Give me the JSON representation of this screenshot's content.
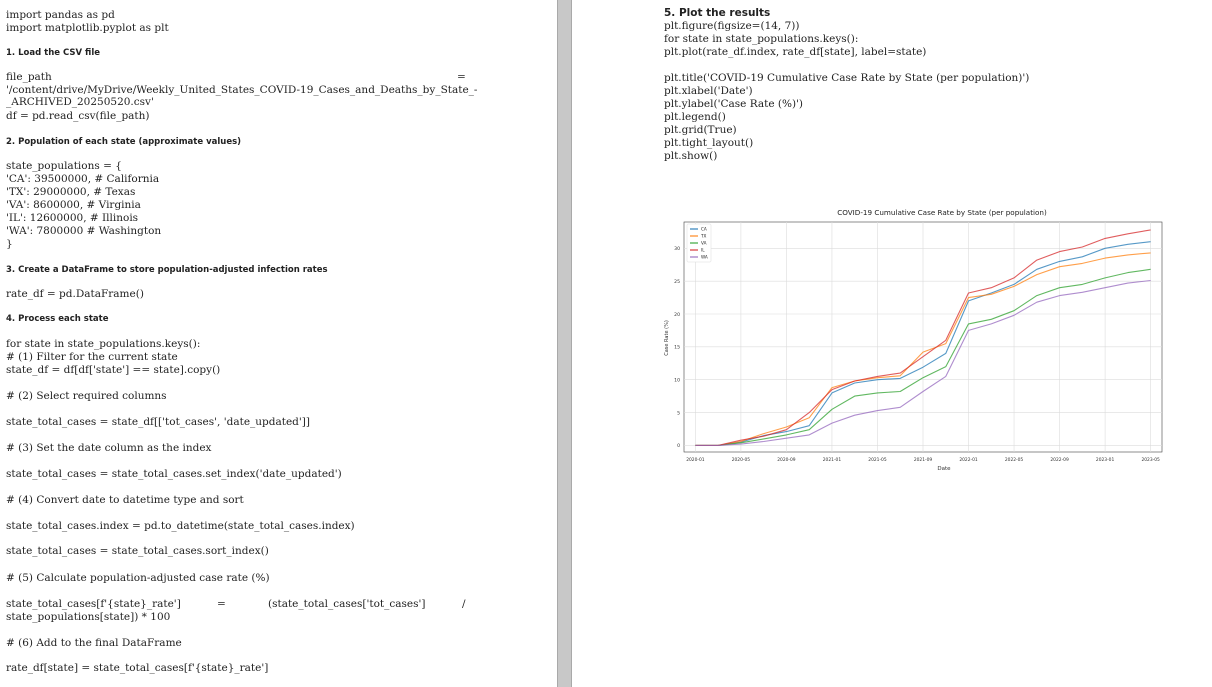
{
  "left": {
    "lines": [
      {
        "t": "import pandas as pd"
      },
      {
        "t": "import matplotlib.pyplot as plt"
      },
      {
        "t": "1. Load the CSV file",
        "h": true
      },
      {
        "t": "file_path"
      },
      {
        "t": "'/content/drive/MyDrive/Weekly_United_States_COVID-19_Cases_and_Deaths_by_State_-"
      },
      {
        "t": "_ARCHIVED_20250520.csv'"
      },
      {
        "t": "df = pd.read_csv(file_path)"
      },
      {
        "t": "2. Population of each state (approximate values)",
        "h": true
      },
      {
        "t": "state_populations = {"
      },
      {
        "t": "'CA': 39500000, # California"
      },
      {
        "t": "'TX': 29000000, # Texas"
      },
      {
        "t": "'VA': 8600000, # Virginia"
      },
      {
        "t": "'IL': 12600000, # Illinois"
      },
      {
        "t": "'WA': 7800000 # Washington"
      },
      {
        "t": "}"
      },
      {
        "t": "3. Create a DataFrame to store population-adjusted infection rates",
        "h": true
      },
      {
        "t": "rate_df = pd.DataFrame()"
      },
      {
        "t": "4. Process each state",
        "h": true
      },
      {
        "t": "for state in state_populations.keys():"
      },
      {
        "t": "# (1) Filter for the current state"
      },
      {
        "t": "state_df = df[df['state'] == state].copy()"
      },
      {
        "t": "# (2) Select required columns"
      },
      {
        "t": "state_total_cases = state_df[['tot_cases', 'date_updated']]"
      },
      {
        "t": "# (3) Set the date column as the index"
      },
      {
        "t": "state_total_cases = state_total_cases.set_index('date_updated')"
      },
      {
        "t": "# (4) Convert date to datetime type and sort"
      },
      {
        "t": "state_total_cases.index = pd.to_datetime(state_total_cases.index)"
      },
      {
        "t": "state_total_cases = state_total_cases.sort_index()"
      },
      {
        "t": "# (5) Calculate population-adjusted case rate (%)"
      },
      {
        "t": "state_total_cases[f'{state}_rate']"
      },
      {
        "t": "state_populations[state]) * 100"
      },
      {
        "t": "# (6) Add to the final DataFrame"
      },
      {
        "t": "rate_df[state] = state_total_cases[f'{state}_rate']"
      }
    ],
    "eq1": "=",
    "eq2": "=",
    "cont2": "(state_total_cases['tot_cases']",
    "slash": "/"
  },
  "right": {
    "heading": "5. Plot the results",
    "lines": [
      "plt.figure(figsize=(14, 7))",
      "for state in state_populations.keys():",
      "plt.plot(rate_df.index, rate_df[state], label=state)",
      "plt.title('COVID-19 Cumulative Case Rate by State (per population)')",
      "plt.xlabel('Date')",
      "plt.ylabel('Case Rate (%)')",
      "plt.legend()",
      "plt.grid(True)",
      "plt.tight_layout()",
      "plt.show()"
    ]
  },
  "chart_data": {
    "type": "line",
    "title": "COVID-19 Cumulative Case Rate by State (per population)",
    "xlabel": "Date",
    "ylabel": "Case Rate (%)",
    "x_ticks": [
      "2020-01",
      "2020-05",
      "2020-09",
      "2021-01",
      "2021-05",
      "2021-09",
      "2022-01",
      "2022-05",
      "2022-09",
      "2023-01",
      "2023-05"
    ],
    "y_ticks": [
      0,
      5,
      10,
      15,
      20,
      25,
      30
    ],
    "ylim": [
      -1,
      34
    ],
    "grid": true,
    "legend_position": "top-left",
    "x": [
      "2020-01",
      "2020-03",
      "2020-05",
      "2020-07",
      "2020-09",
      "2020-11",
      "2021-01",
      "2021-03",
      "2021-05",
      "2021-07",
      "2021-09",
      "2021-11",
      "2022-01",
      "2022-03",
      "2022-05",
      "2022-07",
      "2022-09",
      "2022-11",
      "2023-01",
      "2023-03",
      "2023-05"
    ],
    "series": [
      {
        "name": "CA",
        "color": "#1f77b4",
        "values": [
          0,
          0,
          0.5,
          1.5,
          2.1,
          3.0,
          8.0,
          9.5,
          10.0,
          10.2,
          11.9,
          14.0,
          22.0,
          23.2,
          24.5,
          26.8,
          28.0,
          28.7,
          30.0,
          30.6,
          31.0
        ]
      },
      {
        "name": "TX",
        "color": "#ff7f0e",
        "values": [
          0,
          0,
          0.6,
          1.8,
          2.8,
          4.2,
          8.8,
          9.8,
          10.3,
          10.6,
          14.2,
          15.5,
          22.5,
          23.0,
          24.2,
          26.0,
          27.2,
          27.7,
          28.5,
          29.0,
          29.3
        ]
      },
      {
        "name": "VA",
        "color": "#2ca02c",
        "values": [
          0,
          0,
          0.4,
          1.0,
          1.6,
          2.4,
          5.5,
          7.5,
          8.0,
          8.2,
          10.3,
          12.0,
          18.5,
          19.2,
          20.5,
          22.8,
          24.0,
          24.5,
          25.5,
          26.3,
          26.8
        ]
      },
      {
        "name": "IL",
        "color": "#d62728",
        "values": [
          0,
          0,
          0.8,
          1.4,
          2.4,
          5.0,
          8.5,
          9.8,
          10.5,
          11.0,
          13.5,
          16.0,
          23.2,
          24.0,
          25.5,
          28.2,
          29.5,
          30.2,
          31.5,
          32.2,
          32.8
        ]
      },
      {
        "name": "WA",
        "color": "#9467bd",
        "values": [
          0,
          0,
          0.2,
          0.6,
          1.1,
          1.6,
          3.4,
          4.6,
          5.3,
          5.8,
          8.2,
          10.5,
          17.5,
          18.5,
          19.8,
          21.8,
          22.8,
          23.3,
          24.0,
          24.7,
          25.1
        ]
      }
    ]
  }
}
